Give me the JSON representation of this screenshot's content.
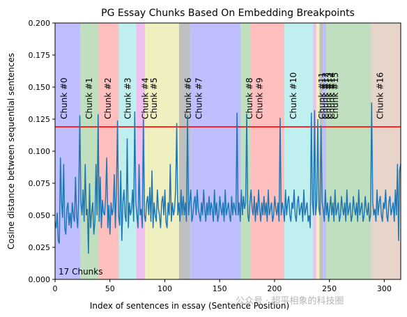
{
  "chart_data": {
    "type": "line",
    "title": "PG Essay Chunks Based On Embedding Breakpoints",
    "xlabel": "Index of sentences in essay (Sentence Position)",
    "ylabel": "Cosine distance between sequential sentences",
    "xlim": [
      0,
      315
    ],
    "ylim": [
      0,
      0.2
    ],
    "x_ticks": [
      0,
      50,
      100,
      150,
      200,
      250,
      300
    ],
    "y_ticks": [
      0.0,
      0.025,
      0.05,
      0.075,
      0.1,
      0.125,
      0.15,
      0.175,
      0.2
    ],
    "y_tick_labels": [
      "0.000",
      "0.025",
      "0.050",
      "0.075",
      "0.100",
      "0.125",
      "0.150",
      "0.175",
      "0.200"
    ],
    "threshold": {
      "value": 0.119,
      "color": "#ff0000"
    },
    "line_color": "#1f77b4",
    "chunk_count_text": "17 Chunks",
    "chunks": [
      {
        "label": "Chunk #0",
        "start": 0,
        "end": 23,
        "color": "#0000ff"
      },
      {
        "label": "Chunk #1",
        "start": 23,
        "end": 40,
        "color": "#008000"
      },
      {
        "label": "Chunk #2",
        "start": 40,
        "end": 58,
        "color": "#ff0000"
      },
      {
        "label": "Chunk #3",
        "start": 58,
        "end": 74,
        "color": "#00bfbf"
      },
      {
        "label": "Chunk #4",
        "start": 74,
        "end": 82,
        "color": "#bf00bf"
      },
      {
        "label": "Chunk #5",
        "start": 82,
        "end": 113,
        "color": "#bfbf00"
      },
      {
        "label": "Chunk #6",
        "start": 113,
        "end": 123,
        "color": "#000000"
      },
      {
        "label": "Chunk #7",
        "start": 123,
        "end": 169,
        "color": "#0000ff"
      },
      {
        "label": "Chunk #8",
        "start": 169,
        "end": 178,
        "color": "#008000"
      },
      {
        "label": "Chunk #9",
        "start": 178,
        "end": 209,
        "color": "#ff0000"
      },
      {
        "label": "Chunk #10",
        "start": 209,
        "end": 235,
        "color": "#00bfbf"
      },
      {
        "label": "Chunk #11",
        "start": 235,
        "end": 238,
        "color": "#bf00bf"
      },
      {
        "label": "Chunk #12",
        "start": 238,
        "end": 241,
        "color": "#bfbf00"
      },
      {
        "label": "Chunk #13",
        "start": 241,
        "end": 244,
        "color": "#000000"
      },
      {
        "label": "Chunk #14",
        "start": 244,
        "end": 247,
        "color": "#0000ff"
      },
      {
        "label": "Chunk #15",
        "start": 247,
        "end": 288,
        "color": "#008000"
      },
      {
        "label": "Chunk #16",
        "start": 288,
        "end": 315,
        "color": "#a0522d"
      }
    ],
    "series": [
      {
        "values": [
          0.045,
          0.04,
          0.052,
          0.03,
          0.028,
          0.095,
          0.06,
          0.048,
          0.09,
          0.04,
          0.035,
          0.055,
          0.06,
          0.042,
          0.052,
          0.04,
          0.06,
          0.05,
          0.045,
          0.08,
          0.05,
          0.04,
          0.065,
          0.128,
          0.06,
          0.05,
          0.07,
          0.045,
          0.09,
          0.05,
          0.055,
          0.02,
          0.075,
          0.04,
          0.052,
          0.06,
          0.035,
          0.045,
          0.09,
          0.05,
          0.129,
          0.045,
          0.08,
          0.04,
          0.062,
          0.052,
          0.05,
          0.065,
          0.095,
          0.04,
          0.058,
          0.035,
          0.06,
          0.05,
          0.055,
          0.082,
          0.04,
          0.07,
          0.124,
          0.05,
          0.042,
          0.085,
          0.03,
          0.06,
          0.07,
          0.05,
          0.045,
          0.11,
          0.04,
          0.06,
          0.05,
          0.055,
          0.07,
          0.045,
          0.131,
          0.06,
          0.05,
          0.04,
          0.09,
          0.05,
          0.055,
          0.04,
          0.125,
          0.05,
          0.045,
          0.06,
          0.065,
          0.05,
          0.072,
          0.045,
          0.085,
          0.04,
          0.06,
          0.05,
          0.045,
          0.07,
          0.055,
          0.05,
          0.04,
          0.06,
          0.065,
          0.05,
          0.07,
          0.045,
          0.04,
          0.06,
          0.05,
          0.09,
          0.045,
          0.06,
          0.05,
          0.055,
          0.07,
          0.122,
          0.05,
          0.06,
          0.045,
          0.07,
          0.05,
          0.065,
          0.05,
          0.06,
          0.045,
          0.128,
          0.05,
          0.06,
          0.07,
          0.045,
          0.05,
          0.06,
          0.065,
          0.05,
          0.07,
          0.055,
          0.05,
          0.045,
          0.06,
          0.05,
          0.07,
          0.055,
          0.045,
          0.06,
          0.05,
          0.065,
          0.05,
          0.06,
          0.055,
          0.045,
          0.07,
          0.05,
          0.06,
          0.045,
          0.05,
          0.065,
          0.055,
          0.05,
          0.06,
          0.045,
          0.07,
          0.05,
          0.055,
          0.06,
          0.05,
          0.045,
          0.065,
          0.05,
          0.06,
          0.055,
          0.05,
          0.13,
          0.05,
          0.06,
          0.045,
          0.07,
          0.05,
          0.065,
          0.055,
          0.06,
          0.129,
          0.05,
          0.045,
          0.06,
          0.07,
          0.055,
          0.05,
          0.065,
          0.045,
          0.06,
          0.05,
          0.07,
          0.055,
          0.045,
          0.06,
          0.05,
          0.065,
          0.05,
          0.06,
          0.045,
          0.07,
          0.05,
          0.055,
          0.06,
          0.045,
          0.05,
          0.065,
          0.055,
          0.05,
          0.06,
          0.045,
          0.126,
          0.05,
          0.06,
          0.055,
          0.045,
          0.07,
          0.05,
          0.06,
          0.065,
          0.05,
          0.045,
          0.06,
          0.055,
          0.07,
          0.05,
          0.045,
          0.06,
          0.065,
          0.05,
          0.055,
          0.06,
          0.045,
          0.07,
          0.05,
          0.055,
          0.06,
          0.045,
          0.05,
          0.04,
          0.13,
          0.06,
          0.05,
          0.132,
          0.05,
          0.06,
          0.125,
          0.055,
          0.05,
          0.12,
          0.06,
          0.055,
          0.045,
          0.07,
          0.05,
          0.06,
          0.045,
          0.055,
          0.065,
          0.05,
          0.06,
          0.045,
          0.07,
          0.05,
          0.055,
          0.06,
          0.045,
          0.05,
          0.065,
          0.055,
          0.05,
          0.06,
          0.045,
          0.07,
          0.05,
          0.055,
          0.06,
          0.045,
          0.05,
          0.065,
          0.055,
          0.05,
          0.06,
          0.045,
          0.07,
          0.05,
          0.055,
          0.06,
          0.045,
          0.05,
          0.065,
          0.055,
          0.05,
          0.06,
          0.045,
          0.05,
          0.138,
          0.06,
          0.05,
          0.055,
          0.045,
          0.07,
          0.05,
          0.06,
          0.065,
          0.05,
          0.045,
          0.06,
          0.055,
          0.07,
          0.05,
          0.045,
          0.06,
          0.065,
          0.05,
          0.055,
          0.06,
          0.045,
          0.07,
          0.05,
          0.09,
          0.03,
          0.085,
          0.09
        ]
      }
    ]
  },
  "watermark_text": "公众号 · 超平相象的科技圈"
}
